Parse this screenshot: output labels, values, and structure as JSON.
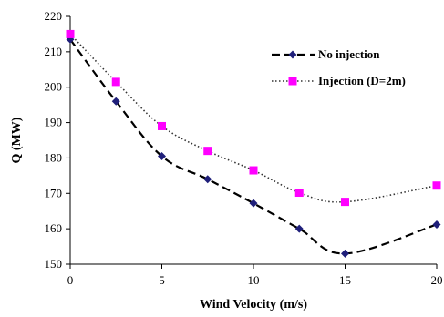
{
  "chart_data": {
    "type": "line",
    "xlabel": "Wind Velocity (m/s)",
    "ylabel": "Q (MW)",
    "xlim": [
      0,
      20
    ],
    "ylim": [
      150,
      220
    ],
    "xticks": [
      0,
      5,
      10,
      15,
      20
    ],
    "yticks": [
      150,
      160,
      170,
      180,
      190,
      200,
      210,
      220
    ],
    "grid": false,
    "legend_position": "top-right",
    "series": [
      {
        "name": "No injection",
        "color": "#1F1F7A",
        "marker": "diamond",
        "line_style": "dashed",
        "x": [
          0,
          2.5,
          5,
          7.5,
          10,
          12.5,
          15,
          20
        ],
        "y": [
          213.5,
          196,
          180.5,
          174,
          167.2,
          160,
          153,
          161.2
        ]
      },
      {
        "name": "Injection (D=2m)",
        "color": "#FF00FF",
        "marker": "square",
        "line_style": "dotted",
        "x": [
          0,
          2.5,
          5,
          7.5,
          10,
          12.5,
          15,
          20
        ],
        "y": [
          215,
          201.5,
          189,
          182,
          176.5,
          170.2,
          167.6,
          172.2
        ]
      }
    ]
  }
}
